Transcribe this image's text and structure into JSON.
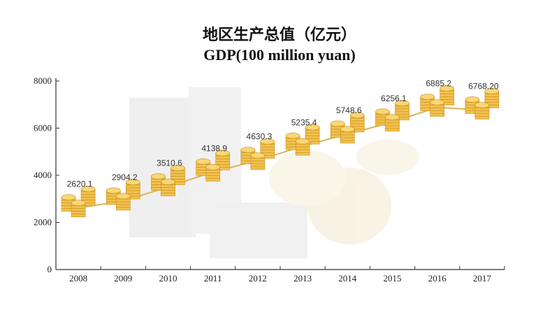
{
  "chart_data": {
    "type": "line",
    "title": "地区生产总值（亿元）",
    "subtitle": "GDP(100 million yuan)",
    "xlabel": "",
    "ylabel": "",
    "x": [
      "2008",
      "2009",
      "2010",
      "2011",
      "2012",
      "2013",
      "2014",
      "2015",
      "2016",
      "2017"
    ],
    "data_labels": [
      "2620.1",
      "2904.2",
      "3510.6",
      "4138.9",
      "4630.3",
      "5235.4",
      "5748.6",
      "6256.1",
      "6885.2",
      "6768.20"
    ],
    "values": [
      2620.1,
      2904.2,
      3510.6,
      4138.9,
      4630.3,
      5235.4,
      5748.6,
      6256.1,
      6885.2,
      6768.2
    ],
    "y_ticks": [
      "0",
      "2000",
      "4000",
      "6000",
      "8000"
    ],
    "ylim": [
      0,
      8000
    ],
    "grid": false,
    "colors": {
      "line": "#d9b45a",
      "coin_fill": "#f2c14e",
      "coin_edge": "#c98f1c",
      "axis": "#333333"
    }
  }
}
